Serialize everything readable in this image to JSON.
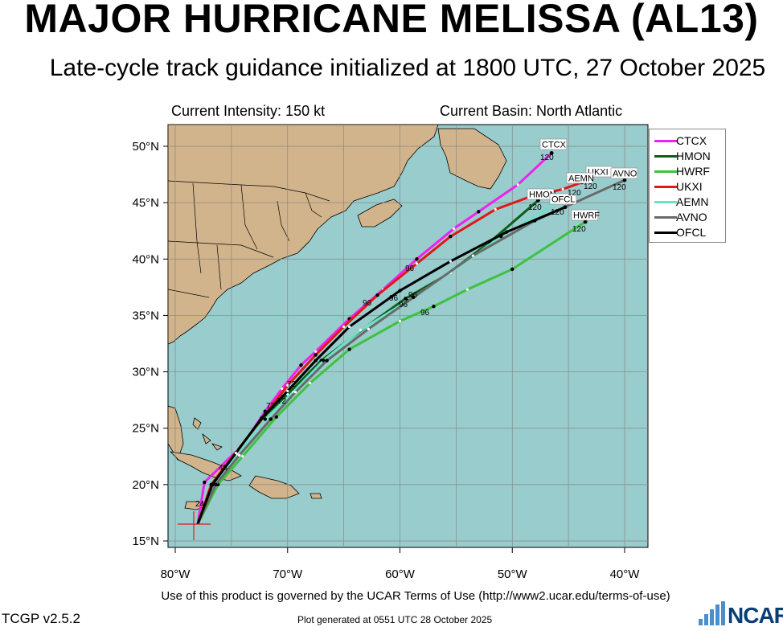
{
  "header": {
    "title": "MAJOR HURRICANE MELISSA (AL13)",
    "subtitle": "Late-cycle track guidance initialized at 1800 UTC, 27 October 2025",
    "intensity": "Current Intensity: 150 kt",
    "basin": "Current Basin: North Atlantic"
  },
  "axes": {
    "lat_labels": [
      "50°N",
      "45°N",
      "40°N",
      "35°N",
      "30°N",
      "25°N",
      "20°N",
      "15°N"
    ],
    "lon_labels": [
      "80°W",
      "70°W",
      "60°W",
      "50°W",
      "40°W"
    ]
  },
  "legend": [
    {
      "name": "CTCX",
      "color": "#ee22ee"
    },
    {
      "name": "HMON",
      "color": "#0b5e1a"
    },
    {
      "name": "HWRF",
      "color": "#3ec23e"
    },
    {
      "name": "UKXI",
      "color": "#e01818"
    },
    {
      "name": "AEMN",
      "color": "#6fe0c8"
    },
    {
      "name": "AVNO",
      "color": "#6a6a6a"
    },
    {
      "name": "OFCL",
      "color": "#000000"
    }
  ],
  "end_labels": {
    "CTCX": "CTCX",
    "HMON": "HMON",
    "HWRF": "HWRF",
    "UKXI": "UKXI",
    "AEMN": "AEMN",
    "AVNO": "AVNO",
    "OFCL": "OFCL"
  },
  "hour_labels": {
    "h72": "72",
    "h96": "96",
    "h120": "120",
    "h48": "48",
    "h24": "24"
  },
  "chart_data": {
    "type": "map",
    "storm": "MAJOR HURRICANE MELISSA (AL13)",
    "initial_position": {
      "lon": -78.0,
      "lat": 16.5
    },
    "tracks": [
      {
        "name": "CTCX",
        "points": [
          [
            -78.0,
            16.5
          ],
          [
            -77.4,
            20.2
          ],
          [
            -74.0,
            23.5
          ],
          [
            -72.0,
            26.5
          ],
          [
            -70.5,
            28.5
          ],
          [
            -68.8,
            30.6
          ],
          [
            -67.5,
            31.8
          ],
          [
            -64.5,
            34.7
          ],
          [
            -61.5,
            37.3
          ],
          [
            -58.5,
            40.0
          ],
          [
            -55.2,
            42.7
          ],
          [
            -53.0,
            44.2
          ],
          [
            -49.5,
            46.6
          ],
          [
            -46.5,
            49.4
          ]
        ],
        "end_hour": 120
      },
      {
        "name": "HMON",
        "points": [
          [
            -78.0,
            16.5
          ],
          [
            -76.5,
            20.0
          ],
          [
            -74.5,
            22.8
          ],
          [
            -72.5,
            25.5
          ],
          [
            -70.0,
            28.0
          ],
          [
            -67.0,
            31.0
          ],
          [
            -63.0,
            34.0
          ],
          [
            -59.5,
            36.5
          ],
          [
            -56.0,
            38.5
          ],
          [
            -52.0,
            41.5
          ],
          [
            -47.7,
            45.2
          ]
        ],
        "end_hour": 120
      },
      {
        "name": "HWRF",
        "points": [
          [
            -78.0,
            16.5
          ],
          [
            -76.2,
            20.0
          ],
          [
            -74.0,
            22.5
          ],
          [
            -71.0,
            26.0
          ],
          [
            -68.0,
            29.0
          ],
          [
            -64.5,
            32.0
          ],
          [
            -60.0,
            34.5
          ],
          [
            -57.0,
            35.8
          ],
          [
            -54.0,
            37.3
          ],
          [
            -50.0,
            39.1
          ],
          [
            -43.5,
            43.3
          ]
        ],
        "end_hour": 120
      },
      {
        "name": "UKXI",
        "points": [
          [
            -78.0,
            16.5
          ],
          [
            -76.8,
            20.0
          ],
          [
            -74.5,
            23.0
          ],
          [
            -72.0,
            26.2
          ],
          [
            -70.0,
            28.8
          ],
          [
            -67.5,
            31.5
          ],
          [
            -65.0,
            34.0
          ],
          [
            -62.0,
            36.8
          ],
          [
            -58.5,
            39.6
          ],
          [
            -55.5,
            42.0
          ],
          [
            -51.5,
            44.4
          ],
          [
            -48.5,
            45.5
          ],
          [
            -45.5,
            46.2
          ],
          [
            -43.8,
            46.8
          ]
        ],
        "end_hour": 120
      },
      {
        "name": "AEMN",
        "points": [
          [
            -78.0,
            16.5
          ],
          [
            -76.6,
            20.0
          ],
          [
            -74.5,
            22.7
          ],
          [
            -72.0,
            25.8
          ],
          [
            -69.5,
            28.2
          ],
          [
            -66.8,
            31.0
          ],
          [
            -63.5,
            33.7
          ],
          [
            -59.3,
            36.3
          ],
          [
            -55.5,
            38.8
          ],
          [
            -51.0,
            42.0
          ],
          [
            -45.5,
            45.3
          ]
        ],
        "end_hour": 120
      },
      {
        "name": "AVNO",
        "points": [
          [
            -78.0,
            16.5
          ],
          [
            -76.4,
            20.0
          ],
          [
            -74.3,
            22.6
          ],
          [
            -71.5,
            25.8
          ],
          [
            -69.3,
            28.2
          ],
          [
            -66.5,
            31.0
          ],
          [
            -62.8,
            33.8
          ],
          [
            -58.8,
            36.6
          ],
          [
            -53.5,
            40.3
          ],
          [
            -48.0,
            43.4
          ],
          [
            -40.0,
            47.0
          ]
        ],
        "end_hour": 120
      },
      {
        "name": "OFCL",
        "points": [
          [
            -78.0,
            16.5
          ],
          [
            -76.7,
            20.0
          ],
          [
            -74.6,
            22.8
          ],
          [
            -72.3,
            25.9
          ],
          [
            -70.0,
            28.3
          ],
          [
            -67.5,
            31.0
          ],
          [
            -64.5,
            34.0
          ],
          [
            -60.0,
            37.2
          ],
          [
            -55.5,
            39.8
          ],
          [
            -50.5,
            42.4
          ],
          [
            -45.3,
            44.6
          ]
        ],
        "end_hour": 120
      }
    ],
    "extent": {
      "lon": [
        -81,
        -38
      ],
      "lat": [
        14,
        52
      ]
    },
    "grid": true
  },
  "footer": {
    "terms": "Use of this product is governed by the UCAR Terms of Use (http://www2.ucar.edu/terms-of-use)",
    "version": "TCGP v2.5.2",
    "plotted": "Plot generated at 0551 UTC   28 October 2025",
    "logo": "NCAR"
  }
}
